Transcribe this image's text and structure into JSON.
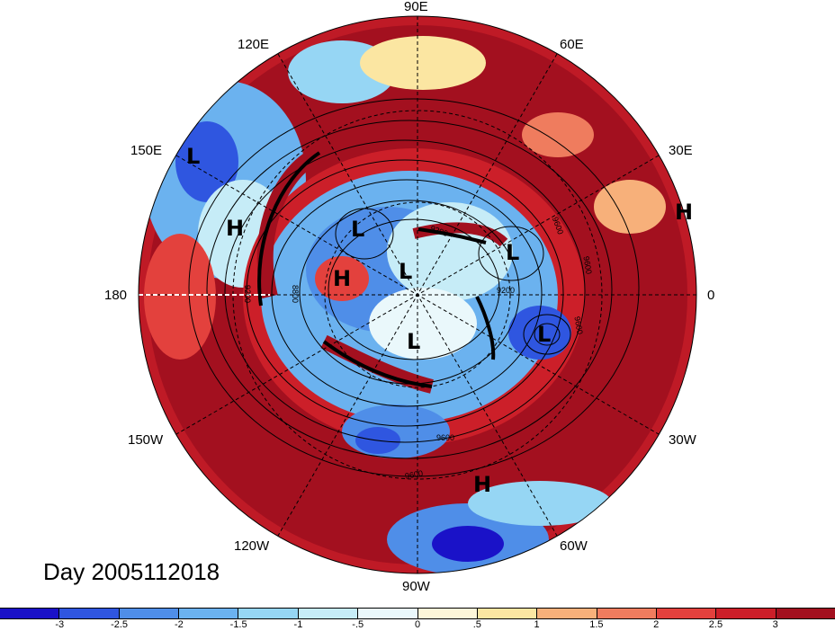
{
  "map": {
    "projection": "north-polar-stereographic",
    "longitude_labels": [
      "90E",
      "60E",
      "30E",
      "0",
      "30W",
      "60W",
      "90W",
      "120W",
      "150W",
      "180",
      "150E",
      "120E"
    ],
    "pressure_centers": [
      "L",
      "H",
      "L",
      "H",
      "L",
      "L",
      "L",
      "L",
      "H",
      "H"
    ],
    "contour_labels": [
      "9200",
      "9600",
      "8800",
      "9600",
      "9200",
      "9600",
      "9600",
      "9600",
      "9200"
    ]
  },
  "day_label": "Day 2005112018",
  "colorbar": {
    "colors": [
      "#1a12c8",
      "#2f56e0",
      "#4f8ee8",
      "#6bb2ef",
      "#96d6f4",
      "#c6ecf7",
      "#eaf8fb",
      "#fdf6d9",
      "#fbe6a2",
      "#f7b07a",
      "#ef7c5e",
      "#e3413d",
      "#cc1f29",
      "#a3101f"
    ],
    "tick_labels": [
      "-3",
      "-2.5",
      "-2",
      "-1.5",
      "-1",
      "-.5",
      "0",
      ".5",
      "1",
      "1.5",
      "2",
      "2.5",
      "3"
    ]
  }
}
